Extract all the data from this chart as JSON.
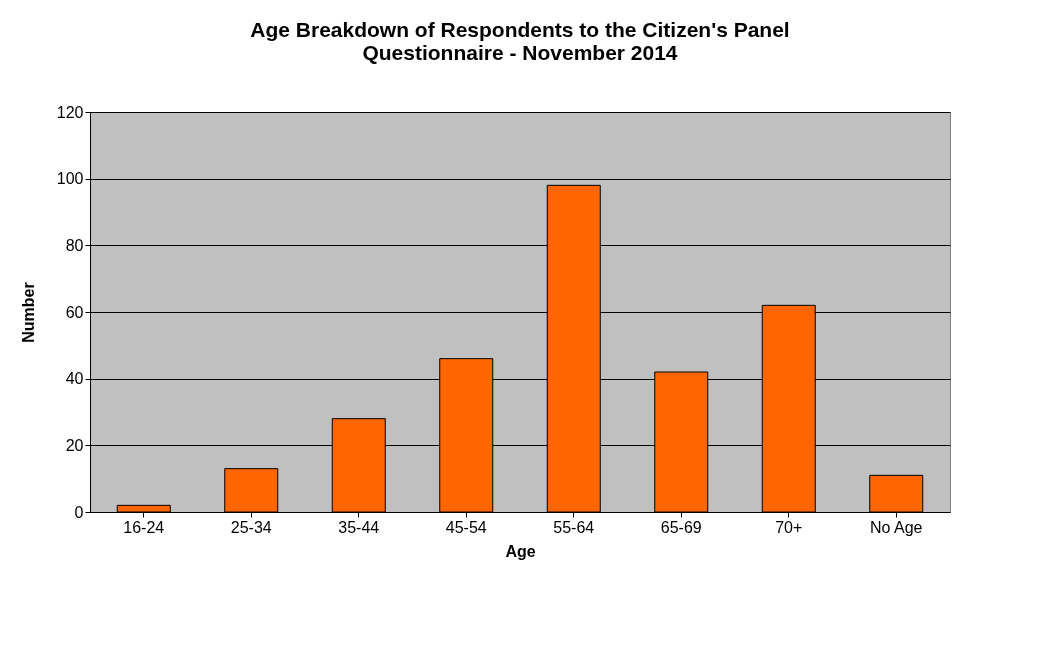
{
  "chart_data": {
    "type": "bar",
    "title": "Age Breakdown of Respondents to the Citizen's Panel\nQuestionnaire - November 2014",
    "xlabel": "Age",
    "ylabel": "Number",
    "categories": [
      "16-24",
      "25-34",
      "35-44",
      "45-54",
      "55-64",
      "65-69",
      "70+",
      "No Age"
    ],
    "values": [
      2,
      13,
      28,
      46,
      98,
      42,
      62,
      11
    ],
    "color": "#ff6600",
    "ylim": [
      0,
      120
    ],
    "yticks": [
      0,
      20,
      40,
      60,
      80,
      100,
      120
    ],
    "grid": "y"
  }
}
